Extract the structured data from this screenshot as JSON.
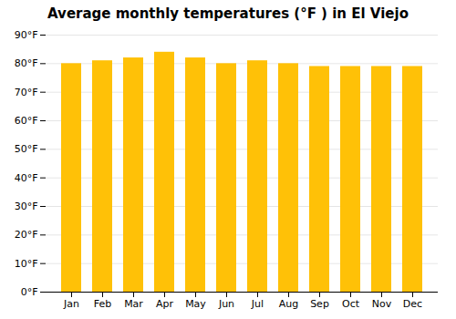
{
  "chart_data": {
    "type": "bar",
    "title": "Average monthly temperatures (°F ) in El Viejo",
    "categories": [
      "Jan",
      "Feb",
      "Mar",
      "Apr",
      "May",
      "Jun",
      "Jul",
      "Aug",
      "Sep",
      "Oct",
      "Nov",
      "Dec"
    ],
    "values": [
      80.0,
      81.0,
      82.0,
      84.0,
      82.0,
      80.0,
      81.0,
      80.0,
      79.0,
      79.0,
      79.0,
      79.0
    ],
    "color": "#FFC107",
    "ylim": [
      0,
      90
    ],
    "yticks": [
      {
        "value": 0,
        "label": "0°F"
      },
      {
        "value": 10,
        "label": "10°F"
      },
      {
        "value": 20,
        "label": "20°F"
      },
      {
        "value": 30,
        "label": "30°F"
      },
      {
        "value": 40,
        "label": "40°F"
      },
      {
        "value": 50,
        "label": "50°F"
      },
      {
        "value": 60,
        "label": "60°F"
      },
      {
        "value": 70,
        "label": "70°F"
      },
      {
        "value": 80,
        "label": "80°F"
      },
      {
        "value": 90,
        "label": "90°F"
      }
    ],
    "grid": true
  }
}
